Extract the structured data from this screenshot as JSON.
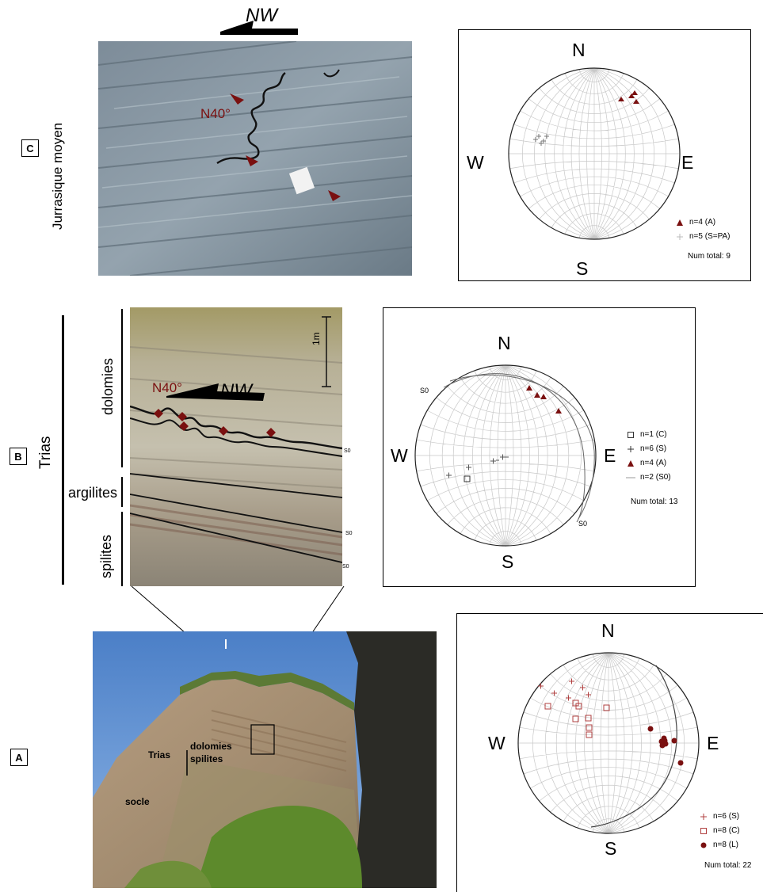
{
  "panel_c": {
    "label": "C",
    "unit_label": "Jurrasique moyen",
    "direction_label": "NW",
    "angle_label": "N40°",
    "stereonet": {
      "north": "N",
      "south": "S",
      "east": "E",
      "west": "W",
      "legend": [
        {
          "symbol": "triangle",
          "text": "n=4 (A)"
        },
        {
          "symbol": "cross-light",
          "text": "n=5 (S=PA)"
        }
      ],
      "total": "Num total: 9"
    }
  },
  "panel_b": {
    "label": "B",
    "unit_label": "Trias",
    "layers": {
      "dolomies": "dolomies",
      "argilites": "argilites",
      "spilites": "spilites"
    },
    "direction_label": "NW",
    "angle_label": "N40°",
    "scale_label": "1m",
    "s0_label": "S0",
    "stereonet": {
      "north": "N",
      "south": "S",
      "east": "E",
      "west": "W",
      "s0_label": "S0",
      "legend": [
        {
          "symbol": "square",
          "text": "n=1 (C)"
        },
        {
          "symbol": "cross",
          "text": "n=6 (S)"
        },
        {
          "symbol": "triangle",
          "text": "n=4 (A)"
        },
        {
          "symbol": "line",
          "text": "n=2 (S0)"
        }
      ],
      "total": "Num total: 13"
    }
  },
  "panel_a": {
    "label": "A",
    "trias_label": "Trias",
    "dolomies_label": "dolomies",
    "spilites_label": "spilites",
    "socle_label": "socle",
    "stereonet": {
      "north": "N",
      "south": "S",
      "east": "E",
      "west": "W",
      "legend": [
        {
          "symbol": "cross-red",
          "text": "n=6 (S)"
        },
        {
          "symbol": "square-red",
          "text": "n=8 (C)"
        },
        {
          "symbol": "dot",
          "text": "n=8 (L)"
        }
      ],
      "total": "Num total: 22"
    }
  },
  "colors": {
    "accent": "#7a1010",
    "marker": "#8b1a1a",
    "net_lines": "#c8c8c8"
  }
}
